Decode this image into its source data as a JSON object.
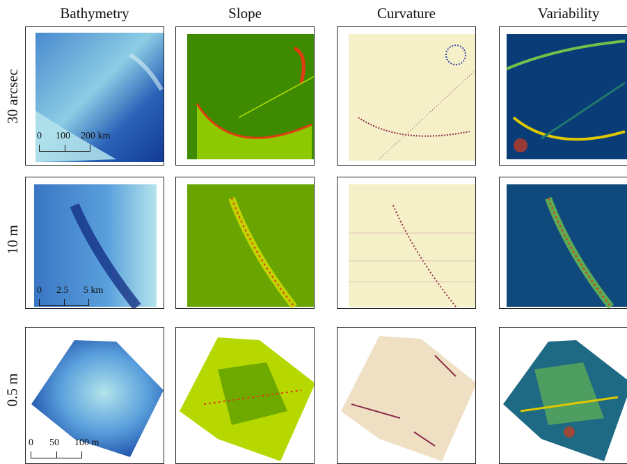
{
  "columns": [
    "Bathymetry",
    "Slope",
    "Curvature",
    "Variability"
  ],
  "rows": [
    "30 arcsec",
    "10 m",
    "0.5 m"
  ],
  "scalebars": [
    {
      "labels": [
        "0",
        "100",
        "200 km"
      ]
    },
    {
      "labels": [
        "0",
        "2.5",
        "5 km"
      ]
    },
    {
      "labels": [
        "0",
        "50",
        "100 m"
      ]
    }
  ],
  "colors": {
    "bathymetry": [
      "#0c2c84",
      "#2166ac",
      "#5aa0dc",
      "#b4e4ec"
    ],
    "slope": [
      "#1e6b00",
      "#7cb000",
      "#e6e600",
      "#e03c14"
    ],
    "curvature": [
      "#f5f0c8",
      "#8b2a4a",
      "#3a4aa8"
    ],
    "variability": [
      "#0a3c78",
      "#1e7a6e",
      "#6fc24a",
      "#e0c800",
      "#d43a1a"
    ]
  }
}
